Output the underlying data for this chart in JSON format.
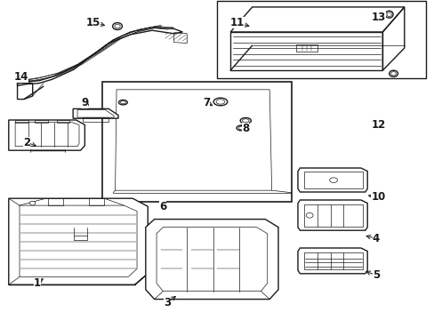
{
  "bg_color": "#ffffff",
  "line_color": "#1a1a1a",
  "lw_main": 1.0,
  "lw_thin": 0.5,
  "lw_xtra": 0.35,
  "fig_width": 4.89,
  "fig_height": 3.6,
  "dpi": 100,
  "label_fontsize": 8.5,
  "label_positions": {
    "1": {
      "txt": [
        0.085,
        0.115
      ],
      "arrow_to": [
        0.105,
        0.135
      ]
    },
    "2": {
      "txt": [
        0.062,
        0.555
      ],
      "arrow_to": [
        0.09,
        0.54
      ]
    },
    "3": {
      "txt": [
        0.385,
        0.055
      ],
      "arrow_to": [
        0.41,
        0.08
      ]
    },
    "4": {
      "txt": [
        0.865,
        0.255
      ],
      "arrow_to": [
        0.835,
        0.265
      ]
    },
    "5": {
      "txt": [
        0.865,
        0.14
      ],
      "arrow_to": [
        0.835,
        0.155
      ]
    },
    "6": {
      "txt": [
        0.375,
        0.355
      ],
      "arrow_to": [
        0.375,
        0.375
      ]
    },
    "7": {
      "txt": [
        0.475,
        0.68
      ],
      "arrow_to": [
        0.495,
        0.665
      ]
    },
    "8": {
      "txt": [
        0.565,
        0.6
      ],
      "arrow_to": [
        0.548,
        0.615
      ]
    },
    "9": {
      "txt": [
        0.195,
        0.68
      ],
      "arrow_to": [
        0.21,
        0.665
      ]
    },
    "10": {
      "txt": [
        0.87,
        0.385
      ],
      "arrow_to": [
        0.84,
        0.39
      ]
    },
    "11": {
      "txt": [
        0.545,
        0.93
      ],
      "arrow_to": [
        0.58,
        0.915
      ]
    },
    "12": {
      "txt": [
        0.87,
        0.61
      ],
      "arrow_to": [
        0.85,
        0.628
      ]
    },
    "13": {
      "txt": [
        0.87,
        0.945
      ],
      "arrow_to": [
        0.852,
        0.922
      ]
    },
    "14": {
      "txt": [
        0.048,
        0.76
      ],
      "arrow_to": [
        0.075,
        0.745
      ]
    },
    "15": {
      "txt": [
        0.215,
        0.93
      ],
      "arrow_to": [
        0.248,
        0.918
      ]
    }
  }
}
